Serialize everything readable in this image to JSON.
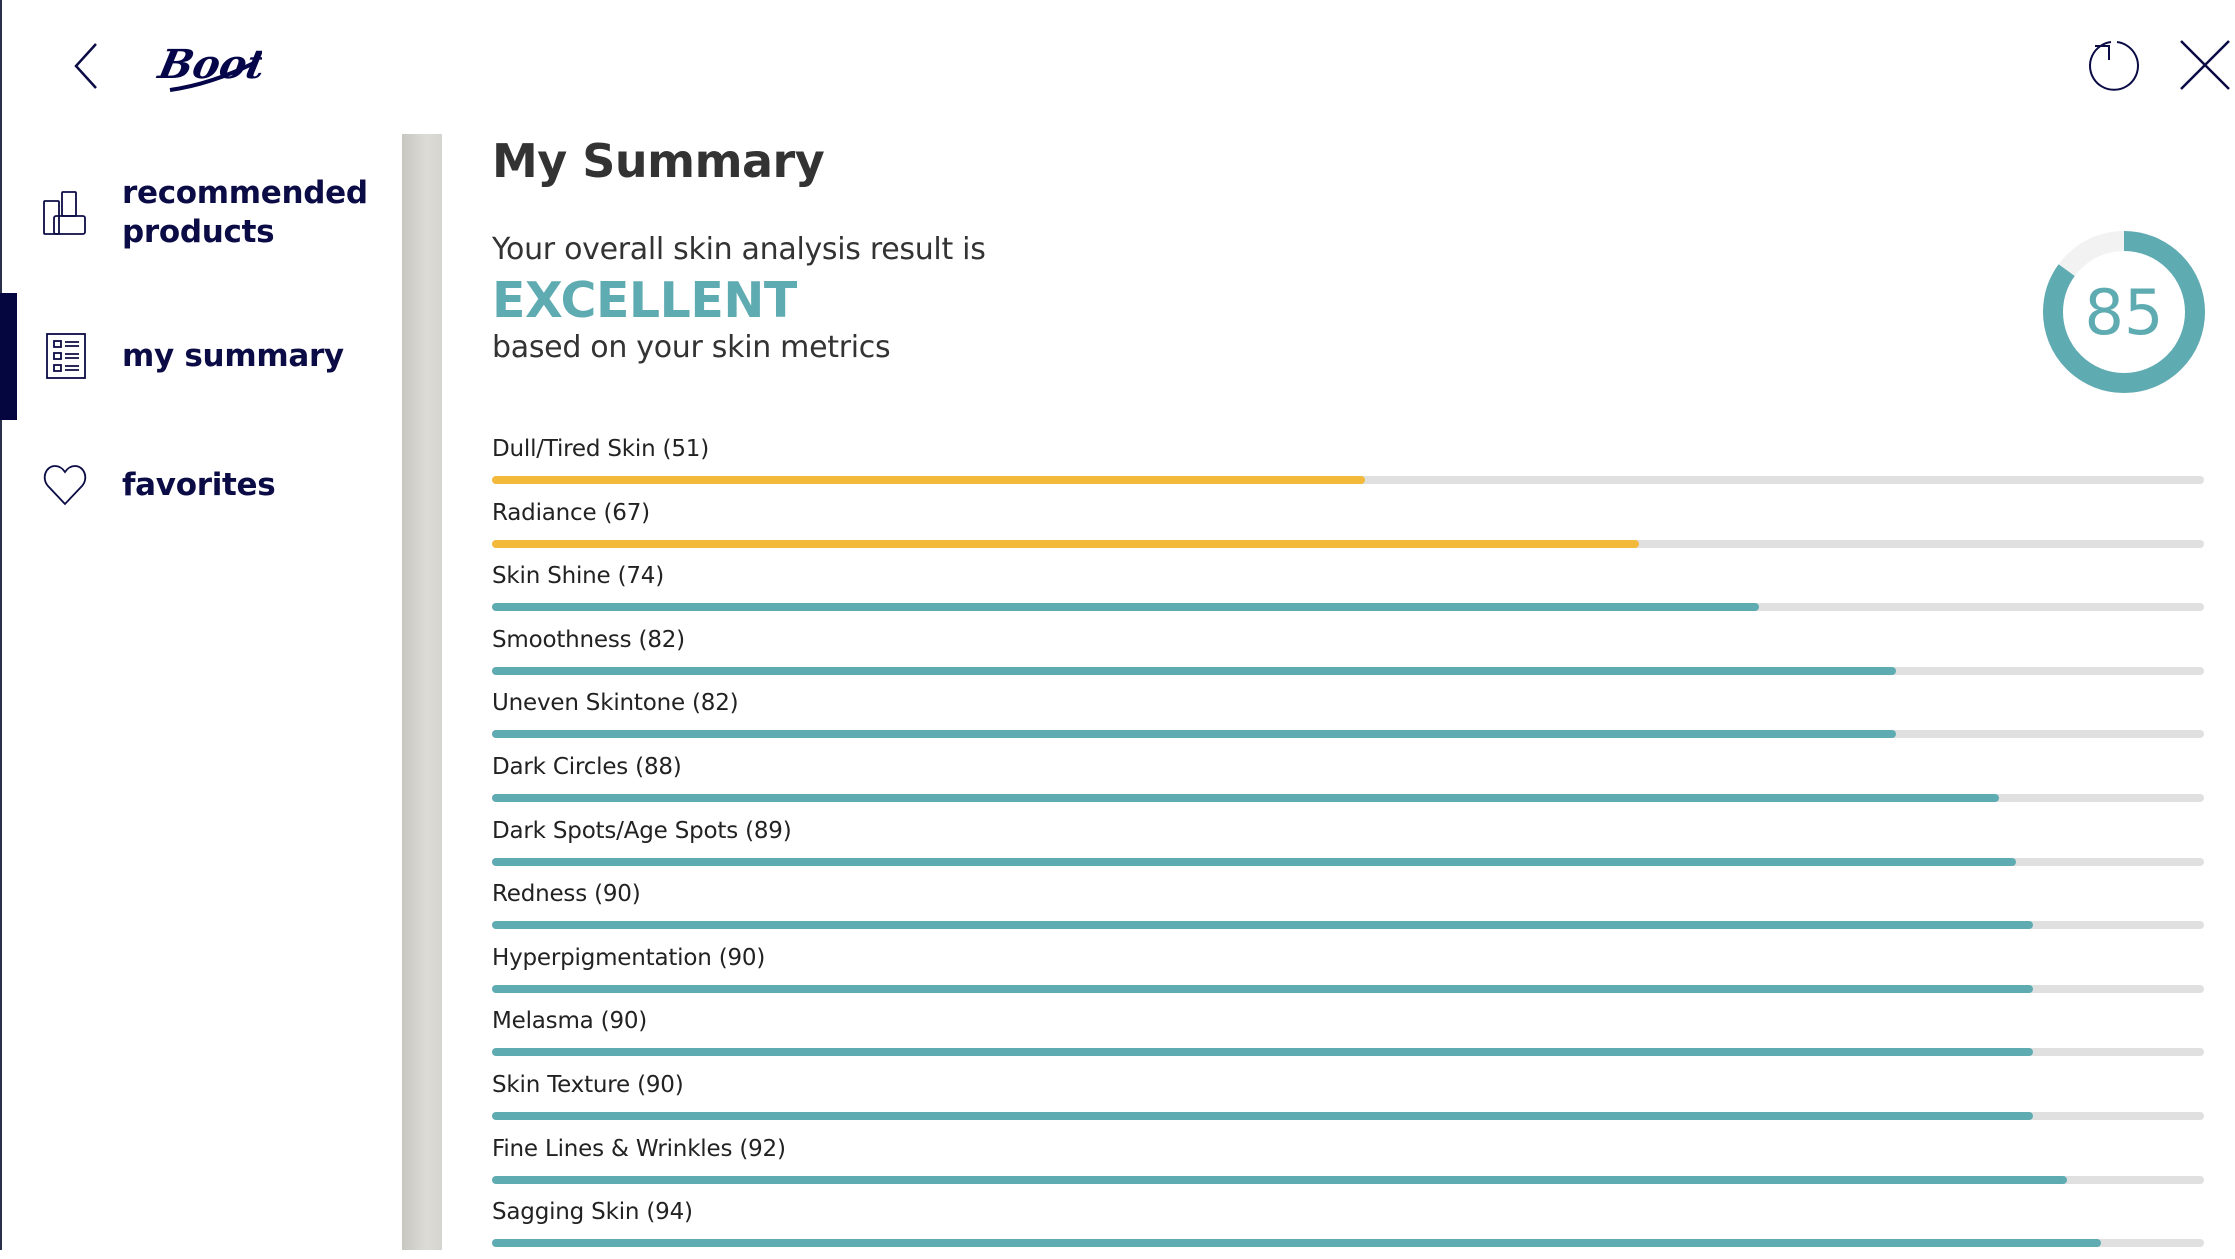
{
  "header": {
    "logo_text": "Boots",
    "back_icon": "chevron-left-icon",
    "refresh_icon": "refresh-icon",
    "close_icon": "close-icon"
  },
  "sidebar": {
    "items": [
      {
        "label": "recommended products",
        "icon": "products-icon",
        "active": false
      },
      {
        "label": "my summary",
        "icon": "list-icon",
        "active": true
      },
      {
        "label": "favorites",
        "icon": "heart-icon",
        "active": false
      }
    ]
  },
  "main": {
    "title": "My Summary",
    "intro": "Your overall skin analysis result is",
    "rating": "EXCELLENT",
    "outro": "based on your skin metrics",
    "score": "85",
    "score_value": 85
  },
  "colors": {
    "teal": "#5fabb2",
    "yellow": "#f2b93b",
    "track": "#e0e0e0",
    "navy": "#0b0b45"
  },
  "metrics": [
    {
      "label": "Dull/Tired Skin (51)",
      "value": 51,
      "color": "yellow"
    },
    {
      "label": "Radiance (67)",
      "value": 67,
      "color": "yellow"
    },
    {
      "label": "Skin Shine (74)",
      "value": 74,
      "color": "teal"
    },
    {
      "label": "Smoothness (82)",
      "value": 82,
      "color": "teal"
    },
    {
      "label": "Uneven Skintone (82)",
      "value": 82,
      "color": "teal"
    },
    {
      "label": "Dark Circles (88)",
      "value": 88,
      "color": "teal"
    },
    {
      "label": "Dark Spots/Age Spots (89)",
      "value": 89,
      "color": "teal"
    },
    {
      "label": "Redness (90)",
      "value": 90,
      "color": "teal"
    },
    {
      "label": "Hyperpigmentation (90)",
      "value": 90,
      "color": "teal"
    },
    {
      "label": "Melasma (90)",
      "value": 90,
      "color": "teal"
    },
    {
      "label": "Skin Texture (90)",
      "value": 90,
      "color": "teal"
    },
    {
      "label": "Fine Lines & Wrinkles (92)",
      "value": 92,
      "color": "teal"
    },
    {
      "label": "Sagging Skin (94)",
      "value": 94,
      "color": "teal"
    }
  ]
}
